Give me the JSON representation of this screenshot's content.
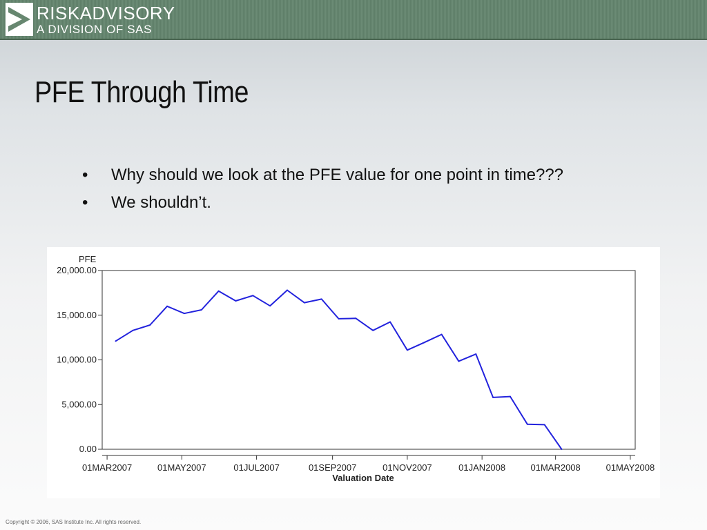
{
  "header": {
    "logo_line1": "RISKADVISORY",
    "logo_line2": "A DIVISION OF SAS",
    "logo_icon": "risk-advisory-logo-mark",
    "band_color": "#678770"
  },
  "slide": {
    "title": "PFE Through Time",
    "bullets": [
      "Why should we look at the PFE value for one point in time???",
      "We shouldn’t."
    ],
    "bullet_symbol": "•"
  },
  "chart_data": {
    "type": "line",
    "ylabel": "PFE",
    "xlabel": "Valuation Date",
    "x_ticks": [
      "01MAR2007",
      "01MAY2007",
      "01JUL2007",
      "01SEP2007",
      "01NOV2007",
      "01JAN2008",
      "01MAR2008",
      "01MAY2008"
    ],
    "y_ticks": [
      "0.00",
      "5,000.00",
      "10,000.00",
      "15,000.00",
      "20,000.00"
    ],
    "y_tick_values": [
      0,
      5000,
      10000,
      15000,
      20000
    ],
    "ylim": [
      0,
      20000
    ],
    "xlim": [
      "2007-02-25",
      "2008-05-05"
    ],
    "grid": false,
    "line_color": "#2222dd",
    "series": [
      {
        "x": [
          "2007-03-08",
          "2007-03-22",
          "2007-04-05",
          "2007-04-19",
          "2007-05-03",
          "2007-05-17",
          "2007-05-31",
          "2007-06-14",
          "2007-06-28",
          "2007-07-12",
          "2007-07-26",
          "2007-08-09",
          "2007-08-23",
          "2007-09-06",
          "2007-09-20",
          "2007-10-04",
          "2007-10-18",
          "2007-11-01",
          "2007-11-15",
          "2007-11-29",
          "2007-12-13",
          "2007-12-27",
          "2008-01-10",
          "2008-01-24",
          "2008-02-07",
          "2008-02-21",
          "2008-03-06"
        ],
        "y": [
          12100,
          13300,
          13900,
          16000,
          15200,
          15600,
          17700,
          16600,
          17200,
          16050,
          17800,
          16400,
          16800,
          14600,
          14650,
          13300,
          14250,
          11100,
          11950,
          12850,
          9850,
          10650,
          5800,
          5900,
          2800,
          2750,
          0
        ]
      }
    ]
  },
  "footer": {
    "copyright": "Copyright © 2006, SAS Institute Inc. All rights reserved."
  }
}
